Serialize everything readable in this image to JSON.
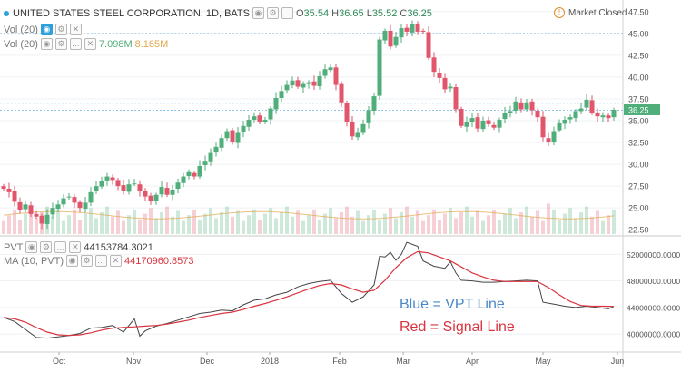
{
  "legend": {
    "symbol": "UNITED STATES STEEL CORPORATION, 1D, BATS",
    "ohlc": {
      "o_label": "O",
      "o": "35.54",
      "h_label": "H",
      "h": "36.65",
      "l_label": "L",
      "l": "35.52",
      "c_label": "C",
      "c": "36.25"
    },
    "line2": "Vol (20)",
    "line3_label": "Vol (20)",
    "vol_value": "7.098M",
    "vol_ma": "8.165M"
  },
  "market_status": "Market Closed",
  "pvt_legend": {
    "label": "PVT",
    "value": "44153784.3021"
  },
  "ma_legend": {
    "label": "MA (10, PVT)",
    "value": "44170960.8573"
  },
  "annotations": {
    "blue": "Blue = VPT Line",
    "red": "Red = Signal Line"
  },
  "colors": {
    "up": "#4fae7a",
    "down": "#e2566c",
    "vpt": "#444444",
    "signal": "#d9343f",
    "note_blue": "#4a87c8",
    "note_red": "#d9343f"
  },
  "price_axis_labels": [
    "47.50",
    "45.00",
    "42.50",
    "40.00",
    "37.50",
    "35.00",
    "32.50",
    "30.00",
    "27.50",
    "25.00",
    "22.50"
  ],
  "pvt_axis_labels": [
    "52000000.0000",
    "48000000.0000",
    "44000000.0000",
    "40000000.0000"
  ],
  "time_axis_labels": [
    "Oct",
    "Nov",
    "Dec",
    "2018",
    "Feb",
    "Mar",
    "Apr",
    "May",
    "Jun"
  ],
  "chart_data": {
    "type": "candlestick",
    "price_range": [
      22.0,
      48.0
    ],
    "pvt_range": [
      37300000,
      54500000
    ],
    "close_path": [
      [
        0,
        27.2
      ],
      [
        6,
        26.8
      ],
      [
        12,
        25.7
      ],
      [
        18,
        24.8
      ],
      [
        24,
        25.4
      ],
      [
        30,
        24.3
      ],
      [
        36,
        24.0
      ],
      [
        42,
        23.2
      ],
      [
        48,
        24.2
      ],
      [
        54,
        25.0
      ],
      [
        60,
        25.4
      ],
      [
        66,
        26.1
      ],
      [
        72,
        26.3
      ],
      [
        78,
        25.6
      ],
      [
        84,
        25.0
      ],
      [
        90,
        25.6
      ],
      [
        96,
        26.8
      ],
      [
        102,
        27.5
      ],
      [
        108,
        28.1
      ],
      [
        114,
        28.6
      ],
      [
        120,
        28.2
      ],
      [
        126,
        27.5
      ],
      [
        132,
        26.9
      ],
      [
        138,
        27.7
      ],
      [
        144,
        27.8
      ],
      [
        150,
        26.9
      ],
      [
        156,
        26.3
      ],
      [
        162,
        25.8
      ],
      [
        168,
        26.5
      ],
      [
        174,
        27.4
      ],
      [
        180,
        26.5
      ],
      [
        186,
        27.1
      ],
      [
        192,
        27.9
      ],
      [
        198,
        28.6
      ],
      [
        204,
        29.1
      ],
      [
        210,
        28.6
      ],
      [
        216,
        29.8
      ],
      [
        222,
        30.4
      ],
      [
        228,
        31.3
      ],
      [
        234,
        32.0
      ],
      [
        240,
        33.0
      ],
      [
        246,
        33.8
      ],
      [
        252,
        32.5
      ],
      [
        258,
        33.6
      ],
      [
        264,
        34.4
      ],
      [
        270,
        35.1
      ],
      [
        276,
        35.5
      ],
      [
        282,
        34.9
      ],
      [
        288,
        35.1
      ],
      [
        294,
        36.4
      ],
      [
        300,
        37.6
      ],
      [
        306,
        38.4
      ],
      [
        312,
        39.1
      ],
      [
        318,
        39.6
      ],
      [
        324,
        38.9
      ],
      [
        330,
        39.2
      ],
      [
        336,
        39.4
      ],
      [
        342,
        39.0
      ],
      [
        348,
        40.1
      ],
      [
        354,
        40.9
      ],
      [
        360,
        41.1
      ],
      [
        366,
        39.1
      ],
      [
        372,
        37.1
      ],
      [
        378,
        34.8
      ],
      [
        384,
        33.2
      ],
      [
        390,
        33.6
      ],
      [
        396,
        34.6
      ],
      [
        402,
        36.2
      ],
      [
        408,
        37.8
      ],
      [
        414,
        44.3
      ],
      [
        420,
        45.3
      ],
      [
        426,
        43.5
      ],
      [
        432,
        44.6
      ],
      [
        438,
        45.6
      ],
      [
        444,
        45.2
      ],
      [
        450,
        46.1
      ],
      [
        456,
        45.2
      ],
      [
        462,
        45.2
      ],
      [
        468,
        42.2
      ],
      [
        474,
        40.6
      ],
      [
        480,
        39.9
      ],
      [
        486,
        38.6
      ],
      [
        492,
        38.9
      ],
      [
        498,
        36.3
      ],
      [
        504,
        34.4
      ],
      [
        510,
        34.8
      ],
      [
        516,
        35.3
      ],
      [
        522,
        34.1
      ],
      [
        528,
        35.0
      ],
      [
        534,
        34.6
      ],
      [
        540,
        34.2
      ],
      [
        546,
        35.1
      ],
      [
        552,
        35.9
      ],
      [
        558,
        36.1
      ],
      [
        564,
        37.2
      ],
      [
        570,
        36.3
      ],
      [
        576,
        37.1
      ],
      [
        582,
        36.2
      ],
      [
        588,
        35.4
      ],
      [
        594,
        33.1
      ],
      [
        600,
        32.5
      ],
      [
        606,
        33.8
      ],
      [
        612,
        34.7
      ],
      [
        618,
        35.1
      ],
      [
        624,
        35.4
      ],
      [
        630,
        36.1
      ],
      [
        636,
        36.4
      ],
      [
        642,
        37.4
      ],
      [
        648,
        35.9
      ],
      [
        654,
        35.5
      ],
      [
        660,
        35.6
      ],
      [
        666,
        35.3
      ],
      [
        672,
        36.25
      ]
    ],
    "pvt_series": [
      [
        0,
        42.5
      ],
      [
        12,
        41.9
      ],
      [
        24,
        40.7
      ],
      [
        36,
        39.5
      ],
      [
        48,
        39.4
      ],
      [
        60,
        39.6
      ],
      [
        72,
        39.8
      ],
      [
        84,
        40.1
      ],
      [
        96,
        40.9
      ],
      [
        108,
        41.0
      ],
      [
        120,
        41.3
      ],
      [
        132,
        40.3
      ],
      [
        144,
        42.3
      ],
      [
        150,
        39.7
      ],
      [
        156,
        40.5
      ],
      [
        168,
        41.2
      ],
      [
        180,
        41.6
      ],
      [
        192,
        42.1
      ],
      [
        204,
        42.6
      ],
      [
        216,
        43.1
      ],
      [
        228,
        43.3
      ],
      [
        240,
        43.6
      ],
      [
        252,
        43.5
      ],
      [
        264,
        44.4
      ],
      [
        276,
        45.1
      ],
      [
        288,
        45.3
      ],
      [
        300,
        45.9
      ],
      [
        312,
        46.3
      ],
      [
        324,
        47.1
      ],
      [
        336,
        47.6
      ],
      [
        348,
        47.9
      ],
      [
        360,
        48.1
      ],
      [
        372,
        46.1
      ],
      [
        384,
        44.8
      ],
      [
        396,
        45.6
      ],
      [
        408,
        47.4
      ],
      [
        414,
        51.7
      ],
      [
        420,
        51.6
      ],
      [
        426,
        52.3
      ],
      [
        432,
        51.1
      ],
      [
        438,
        52.0
      ],
      [
        444,
        53.8
      ],
      [
        456,
        53.2
      ],
      [
        462,
        51.0
      ],
      [
        474,
        50.2
      ],
      [
        486,
        49.9
      ],
      [
        492,
        50.9
      ],
      [
        498,
        49.2
      ],
      [
        504,
        48.1
      ],
      [
        516,
        48.0
      ],
      [
        528,
        47.8
      ],
      [
        540,
        47.8
      ],
      [
        552,
        47.9
      ],
      [
        564,
        48.0
      ],
      [
        576,
        48.1
      ],
      [
        588,
        48.0
      ],
      [
        594,
        44.8
      ],
      [
        606,
        44.5
      ],
      [
        618,
        44.2
      ],
      [
        630,
        44.0
      ],
      [
        642,
        44.2
      ],
      [
        654,
        44.0
      ],
      [
        666,
        43.8
      ],
      [
        672,
        44.15
      ]
    ],
    "signal_series": [
      [
        0,
        42.5
      ],
      [
        12,
        42.3
      ],
      [
        24,
        41.8
      ],
      [
        36,
        41.0
      ],
      [
        48,
        40.3
      ],
      [
        60,
        39.9
      ],
      [
        72,
        39.8
      ],
      [
        84,
        39.9
      ],
      [
        96,
        40.2
      ],
      [
        108,
        40.6
      ],
      [
        120,
        40.9
      ],
      [
        132,
        41.0
      ],
      [
        144,
        41.1
      ],
      [
        156,
        41.2
      ],
      [
        168,
        41.3
      ],
      [
        180,
        41.5
      ],
      [
        192,
        41.8
      ],
      [
        204,
        42.1
      ],
      [
        216,
        42.5
      ],
      [
        228,
        42.8
      ],
      [
        240,
        43.1
      ],
      [
        252,
        43.3
      ],
      [
        264,
        43.7
      ],
      [
        276,
        44.2
      ],
      [
        288,
        44.6
      ],
      [
        300,
        45.1
      ],
      [
        312,
        45.6
      ],
      [
        324,
        46.2
      ],
      [
        336,
        46.8
      ],
      [
        348,
        47.3
      ],
      [
        360,
        47.6
      ],
      [
        372,
        47.4
      ],
      [
        384,
        46.8
      ],
      [
        396,
        46.3
      ],
      [
        408,
        46.6
      ],
      [
        420,
        48.1
      ],
      [
        432,
        50.0
      ],
      [
        444,
        51.5
      ],
      [
        456,
        52.4
      ],
      [
        468,
        52.2
      ],
      [
        480,
        51.6
      ],
      [
        492,
        51.0
      ],
      [
        504,
        50.1
      ],
      [
        516,
        49.2
      ],
      [
        528,
        48.6
      ],
      [
        540,
        48.1
      ],
      [
        552,
        47.9
      ],
      [
        564,
        47.9
      ],
      [
        576,
        47.9
      ],
      [
        588,
        47.9
      ],
      [
        600,
        47.0
      ],
      [
        612,
        45.9
      ],
      [
        624,
        44.9
      ],
      [
        636,
        44.3
      ],
      [
        648,
        44.2
      ],
      [
        660,
        44.2
      ],
      [
        672,
        44.17
      ]
    ],
    "volume_spikes": [
      [
        145,
        0.85
      ],
      [
        412,
        0.92
      ],
      [
        425,
        0.78
      ],
      [
        445,
        0.95
      ],
      [
        592,
        0.86
      ],
      [
        600,
        0.42
      ]
    ]
  }
}
